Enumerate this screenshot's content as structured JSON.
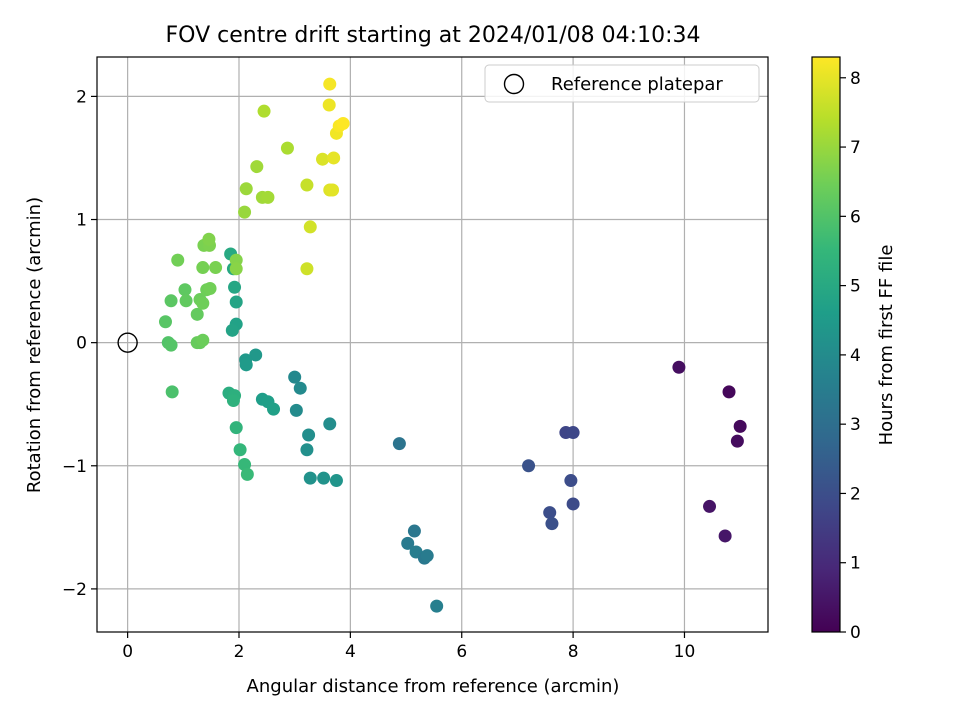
{
  "chart_data": {
    "type": "scatter",
    "title": "FOV centre drift starting at 2024/01/08 04:10:34",
    "xlabel": "Angular distance from reference (arcmin)",
    "ylabel": "Rotation from reference (arcmin)",
    "xlim": [
      -0.55,
      11.5
    ],
    "ylim": [
      -2.35,
      2.32
    ],
    "xticks": [
      0,
      2,
      4,
      6,
      8,
      10
    ],
    "yticks": [
      -2,
      -1,
      0,
      1,
      2
    ],
    "grid": true,
    "legend": {
      "placement": "top-right",
      "entries": [
        "Reference platepar"
      ]
    },
    "reference_point": {
      "x": 0,
      "y": 0
    },
    "colorbar": {
      "label": "Hours from first FF file",
      "range": [
        0,
        8.3
      ],
      "ticks": [
        0,
        1,
        2,
        3,
        4,
        5,
        6,
        7,
        8
      ],
      "colormap": "viridis"
    },
    "colormap_stops": [
      "#440154",
      "#482878",
      "#3e4989",
      "#31688e",
      "#26828e",
      "#1f9e89",
      "#35b779",
      "#6ece58",
      "#b5de2b",
      "#fde725"
    ],
    "points": [
      {
        "x": 9.9,
        "y": -0.2,
        "c": 0.3
      },
      {
        "x": 10.8,
        "y": -0.4,
        "c": 0.15
      },
      {
        "x": 11.0,
        "y": -0.68,
        "c": 0.2
      },
      {
        "x": 10.95,
        "y": -0.8,
        "c": 0.25
      },
      {
        "x": 10.45,
        "y": -1.33,
        "c": 0.45
      },
      {
        "x": 10.73,
        "y": -1.57,
        "c": 0.5
      },
      {
        "x": 7.2,
        "y": -1.0,
        "c": 2.1
      },
      {
        "x": 7.87,
        "y": -0.73,
        "c": 1.75
      },
      {
        "x": 8.0,
        "y": -0.73,
        "c": 1.8
      },
      {
        "x": 7.96,
        "y": -1.12,
        "c": 1.95
      },
      {
        "x": 8.0,
        "y": -1.31,
        "c": 1.9
      },
      {
        "x": 7.58,
        "y": -1.38,
        "c": 2.0
      },
      {
        "x": 7.62,
        "y": -1.47,
        "c": 2.05
      },
      {
        "x": 4.88,
        "y": -0.82,
        "c": 3.2
      },
      {
        "x": 5.15,
        "y": -1.53,
        "c": 3.3
      },
      {
        "x": 5.03,
        "y": -1.63,
        "c": 3.4
      },
      {
        "x": 5.18,
        "y": -1.7,
        "c": 3.5
      },
      {
        "x": 5.33,
        "y": -1.75,
        "c": 3.35
      },
      {
        "x": 5.38,
        "y": -1.73,
        "c": 3.45
      },
      {
        "x": 5.55,
        "y": -2.14,
        "c": 3.6
      },
      {
        "x": 3.0,
        "y": -0.28,
        "c": 3.9
      },
      {
        "x": 3.1,
        "y": -0.37,
        "c": 3.95
      },
      {
        "x": 3.03,
        "y": -0.55,
        "c": 4.0
      },
      {
        "x": 3.63,
        "y": -0.66,
        "c": 4.05
      },
      {
        "x": 3.25,
        "y": -0.75,
        "c": 4.1
      },
      {
        "x": 3.22,
        "y": -0.87,
        "c": 4.15
      },
      {
        "x": 3.28,
        "y": -1.1,
        "c": 4.2
      },
      {
        "x": 3.52,
        "y": -1.1,
        "c": 4.25
      },
      {
        "x": 3.75,
        "y": -1.12,
        "c": 4.3
      },
      {
        "x": 2.3,
        "y": -0.1,
        "c": 4.4
      },
      {
        "x": 2.12,
        "y": -0.14,
        "c": 4.45
      },
      {
        "x": 2.13,
        "y": -0.18,
        "c": 4.5
      },
      {
        "x": 2.42,
        "y": -0.46,
        "c": 4.6
      },
      {
        "x": 2.52,
        "y": -0.48,
        "c": 4.65
      },
      {
        "x": 2.62,
        "y": -0.54,
        "c": 4.7
      },
      {
        "x": 1.95,
        "y": 0.15,
        "c": 4.75
      },
      {
        "x": 1.88,
        "y": 0.1,
        "c": 4.8
      },
      {
        "x": 1.95,
        "y": 0.33,
        "c": 4.85
      },
      {
        "x": 1.92,
        "y": 0.45,
        "c": 4.9
      },
      {
        "x": 1.9,
        "y": 0.6,
        "c": 4.95
      },
      {
        "x": 1.85,
        "y": 0.72,
        "c": 5.0
      },
      {
        "x": 1.82,
        "y": -0.41,
        "c": 5.15
      },
      {
        "x": 1.92,
        "y": -0.43,
        "c": 5.25
      },
      {
        "x": 1.9,
        "y": -0.47,
        "c": 5.3
      },
      {
        "x": 1.95,
        "y": -0.69,
        "c": 5.4
      },
      {
        "x": 2.02,
        "y": -0.87,
        "c": 5.5
      },
      {
        "x": 2.1,
        "y": -0.99,
        "c": 5.55
      },
      {
        "x": 2.15,
        "y": -1.07,
        "c": 5.6
      },
      {
        "x": 0.8,
        "y": -0.4,
        "c": 5.9
      },
      {
        "x": 0.73,
        "y": 0.0,
        "c": 6.0
      },
      {
        "x": 0.78,
        "y": -0.02,
        "c": 6.05
      },
      {
        "x": 0.68,
        "y": 0.17,
        "c": 6.1
      },
      {
        "x": 0.78,
        "y": 0.34,
        "c": 6.15
      },
      {
        "x": 1.03,
        "y": 0.43,
        "c": 6.2
      },
      {
        "x": 1.05,
        "y": 0.34,
        "c": 6.25
      },
      {
        "x": 1.25,
        "y": 0.23,
        "c": 6.3
      },
      {
        "x": 1.25,
        "y": 0.0,
        "c": 6.35
      },
      {
        "x": 1.3,
        "y": 0.0,
        "c": 6.35
      },
      {
        "x": 1.35,
        "y": 0.02,
        "c": 6.4
      },
      {
        "x": 1.3,
        "y": 0.35,
        "c": 6.4
      },
      {
        "x": 1.35,
        "y": 0.32,
        "c": 6.45
      },
      {
        "x": 1.42,
        "y": 0.43,
        "c": 6.45
      },
      {
        "x": 1.48,
        "y": 0.44,
        "c": 6.5
      },
      {
        "x": 0.9,
        "y": 0.67,
        "c": 6.5
      },
      {
        "x": 1.35,
        "y": 0.61,
        "c": 6.55
      },
      {
        "x": 1.58,
        "y": 0.61,
        "c": 6.6
      },
      {
        "x": 1.37,
        "y": 0.79,
        "c": 6.6
      },
      {
        "x": 1.47,
        "y": 0.79,
        "c": 6.65
      },
      {
        "x": 1.46,
        "y": 0.84,
        "c": 6.7
      },
      {
        "x": 1.95,
        "y": 0.67,
        "c": 6.75
      },
      {
        "x": 1.95,
        "y": 0.6,
        "c": 6.8
      },
      {
        "x": 2.1,
        "y": 1.06,
        "c": 7.0
      },
      {
        "x": 2.13,
        "y": 1.25,
        "c": 7.05
      },
      {
        "x": 2.42,
        "y": 1.18,
        "c": 7.1
      },
      {
        "x": 2.52,
        "y": 1.18,
        "c": 7.15
      },
      {
        "x": 2.32,
        "y": 1.43,
        "c": 7.1
      },
      {
        "x": 2.45,
        "y": 1.88,
        "c": 7.3
      },
      {
        "x": 2.87,
        "y": 1.58,
        "c": 7.25
      },
      {
        "x": 3.22,
        "y": 1.28,
        "c": 7.6
      },
      {
        "x": 3.22,
        "y": 0.6,
        "c": 7.7
      },
      {
        "x": 3.28,
        "y": 0.94,
        "c": 7.75
      },
      {
        "x": 3.5,
        "y": 1.49,
        "c": 7.85
      },
      {
        "x": 3.63,
        "y": 1.24,
        "c": 7.9
      },
      {
        "x": 3.68,
        "y": 1.24,
        "c": 7.95
      },
      {
        "x": 3.7,
        "y": 1.5,
        "c": 8.0
      },
      {
        "x": 3.62,
        "y": 1.93,
        "c": 8.1
      },
      {
        "x": 3.63,
        "y": 2.1,
        "c": 8.2
      },
      {
        "x": 3.75,
        "y": 1.7,
        "c": 8.15
      },
      {
        "x": 3.8,
        "y": 1.76,
        "c": 8.25
      },
      {
        "x": 3.87,
        "y": 1.78,
        "c": 8.3
      }
    ]
  }
}
